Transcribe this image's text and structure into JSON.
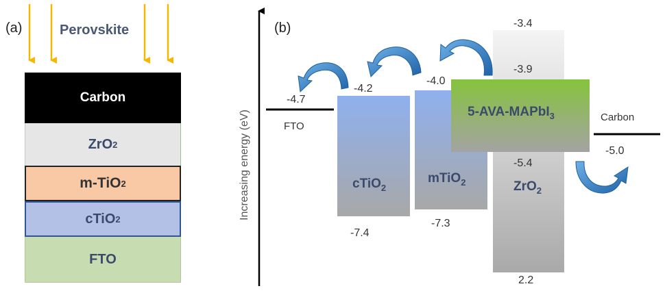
{
  "panel_a": {
    "label": "(a)",
    "title": "Perovskite",
    "layers": {
      "carbon": "Carbon",
      "zro2": "ZrO",
      "zro2_sub": "2",
      "mtio2": "m-TiO",
      "mtio2_sub": "2",
      "ctio2": "cTiO",
      "ctio2_sub": "2",
      "fto": "FTO"
    },
    "colors": {
      "carbon": "#000000",
      "zro2": "#e6e6e6",
      "mtio2": "#f9c9a6",
      "ctio2": "#b3c1e6",
      "fto": "#c8dcb1",
      "light_arrow": "#f5b800"
    }
  },
  "panel_b": {
    "label": "(b)",
    "axis_label": "Increasing energy (eV)",
    "fto": {
      "label": "FTO",
      "level": "-4.7"
    },
    "ctio2": {
      "label": "cTiO",
      "sub": "2",
      "top": "-4.2",
      "bottom": "-7.4"
    },
    "mtio2": {
      "label": "mTiO",
      "sub": "2",
      "top": "-4.0",
      "bottom": "-7.3"
    },
    "zro2": {
      "label": "ZrO",
      "sub": "2",
      "top": "-3.4",
      "mid1": "-3.9",
      "mid2": "-5.4",
      "bottom": "2.2"
    },
    "perovskite": {
      "label": "5-AVA-MAPbI",
      "sub": "3"
    },
    "carbon": {
      "label": "Carbon",
      "level": "-5.0"
    },
    "colors": {
      "ctio2": "#8fb0ef",
      "mtio2": "#8fb0ef",
      "perovskite": "#8dc63f",
      "zro2": "#bdbdbd",
      "arrow": "#2f7dc1"
    }
  }
}
